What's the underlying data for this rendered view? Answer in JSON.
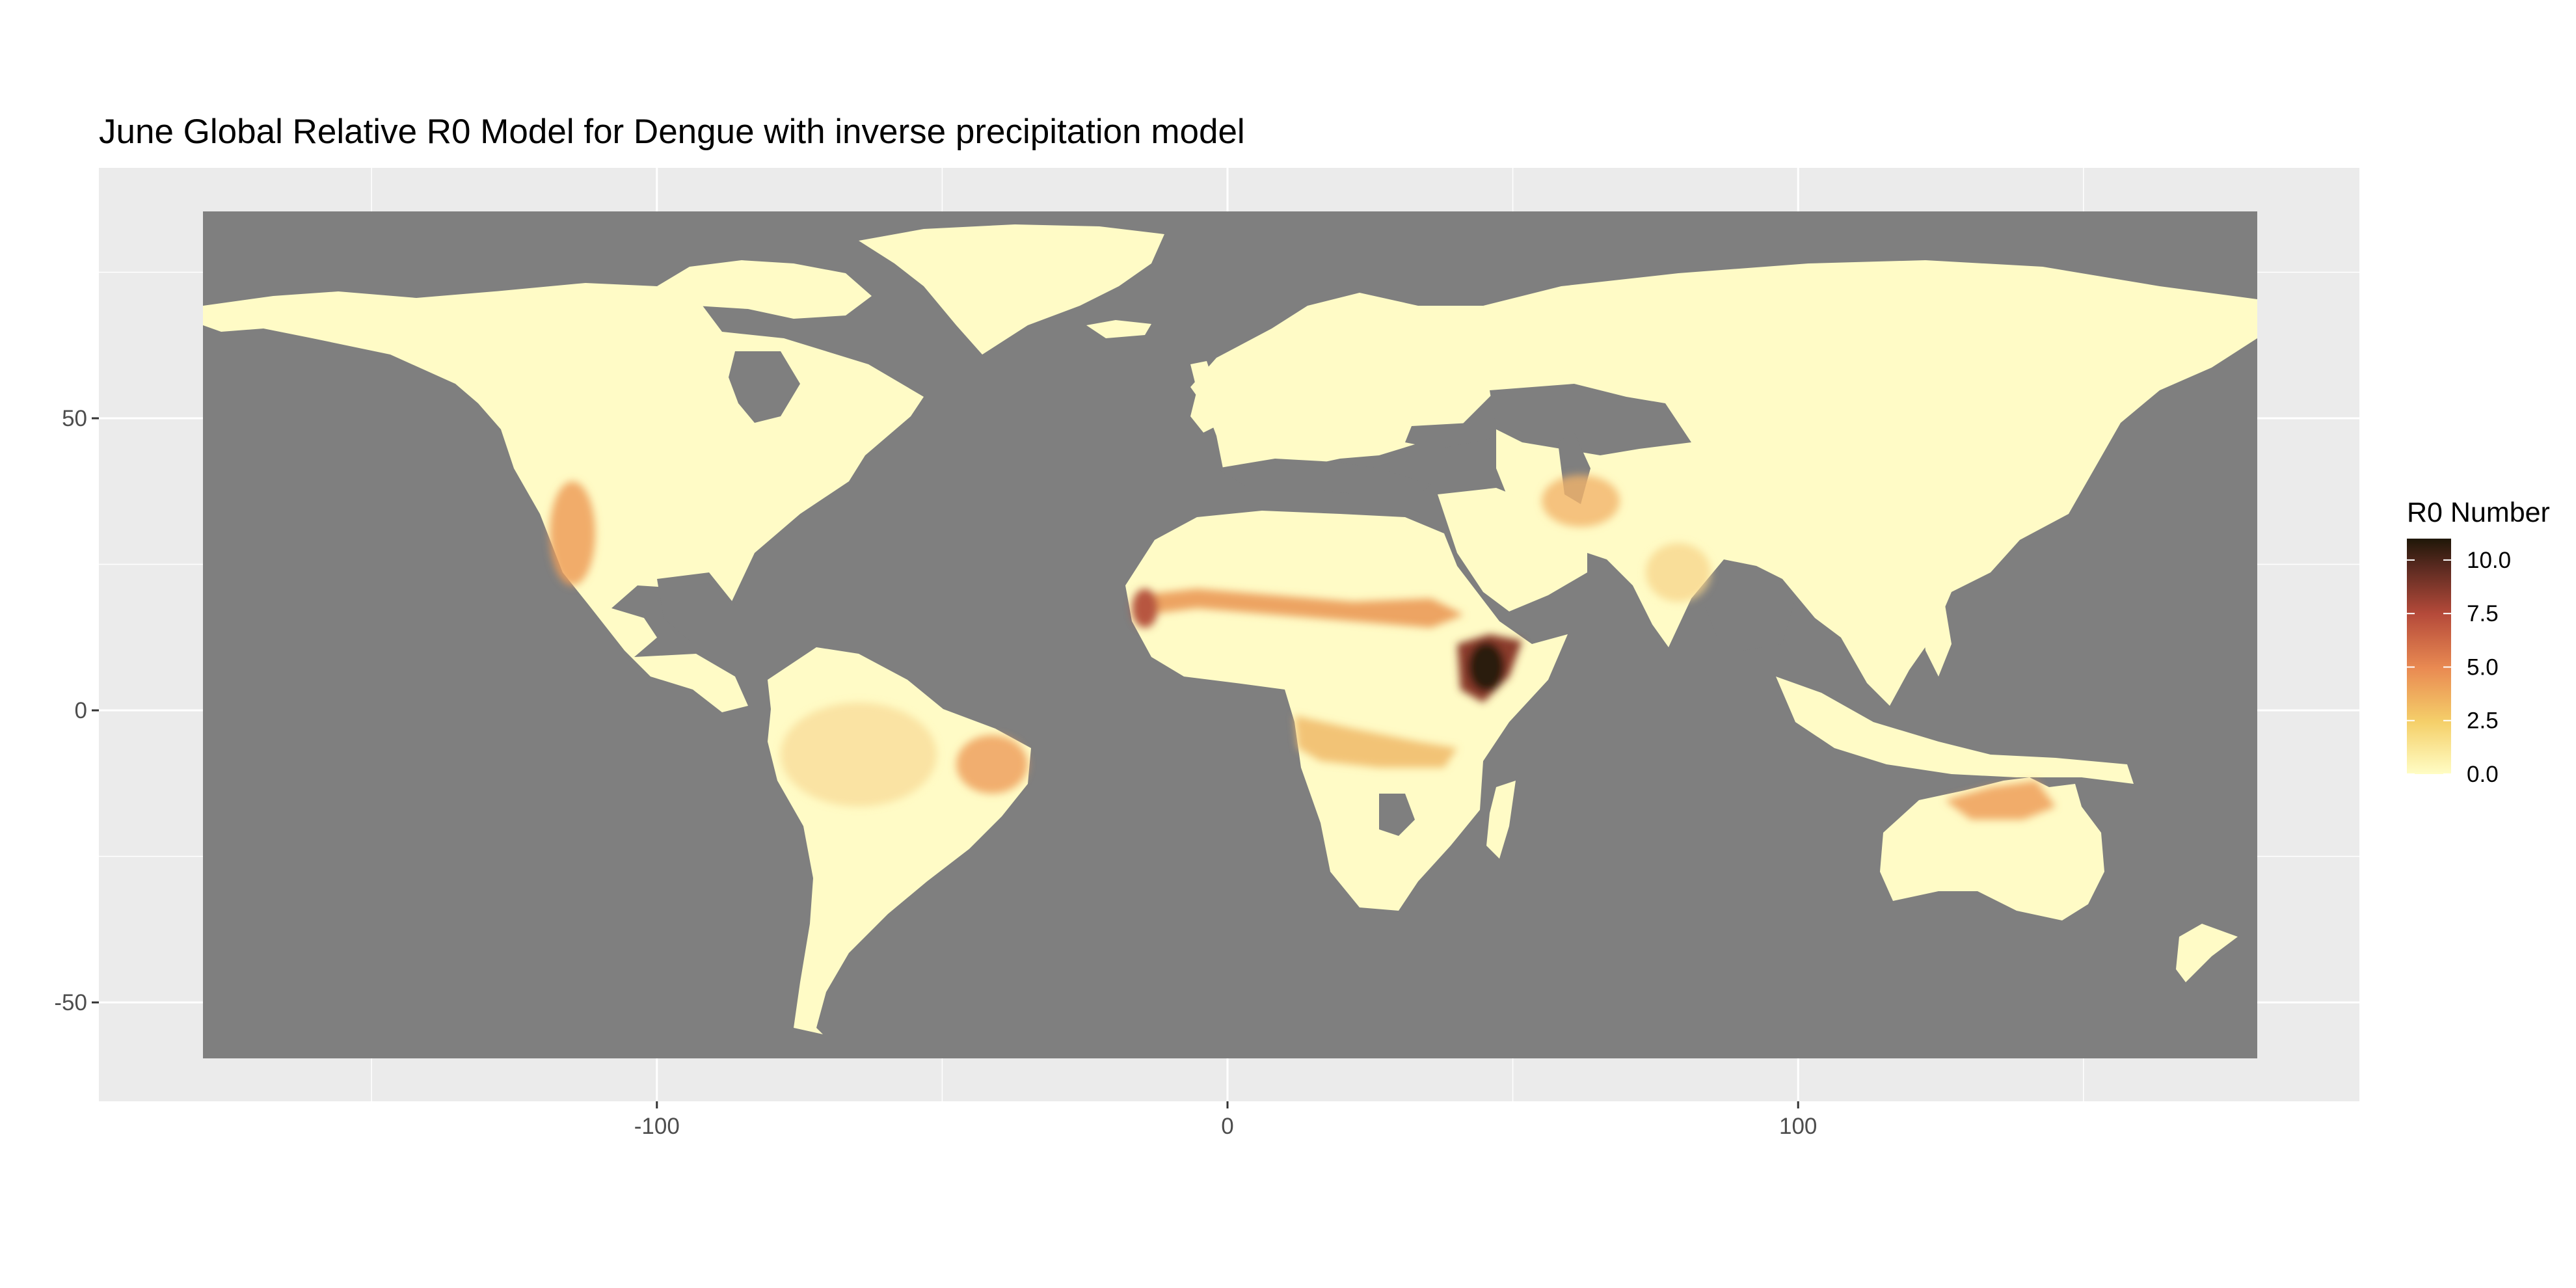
{
  "chart_data": {
    "type": "heatmap",
    "title": "June Global Relative R0 Model for Dengue with inverse precipitation model",
    "xlabel": "",
    "ylabel": "",
    "x_ticks": [
      -100,
      0,
      100
    ],
    "x_tick_labels": [
      "-100",
      "0",
      "100"
    ],
    "y_ticks": [
      50,
      0,
      -50
    ],
    "y_tick_labels": [
      "50",
      "0",
      "-50"
    ],
    "xlim": [
      -198,
      198
    ],
    "ylim": [
      -67,
      93
    ],
    "raster_extent": {
      "lon": [
        -180,
        180
      ],
      "lat": [
        -60,
        85
      ]
    },
    "grid": true,
    "legend": {
      "title": "R0 Number",
      "placement": "right",
      "min": 0,
      "max": 11,
      "breaks": [
        10.0,
        7.5,
        5.0,
        2.5,
        0.0
      ],
      "break_labels": [
        "10.0",
        "7.5",
        "5.0",
        "2.5",
        "0.0"
      ],
      "colors": [
        "#fffdc5",
        "#f5d06a",
        "#e98a52",
        "#b54a3a",
        "#5a2a20",
        "#1f1708"
      ]
    },
    "colors": {
      "panel_background": "#ebebeb",
      "no_data": "#7f7f7f",
      "grid": "#ffffff",
      "land_low": "#fffbc6"
    },
    "hotspots": [
      {
        "region": "Sahel",
        "lon": [
          -17,
          40
        ],
        "lat": [
          10,
          18
        ],
        "r0": 6
      },
      {
        "region": "Horn of Africa",
        "lon": [
          37,
          50
        ],
        "lat": [
          2,
          12
        ],
        "r0": 10
      },
      {
        "region": "Central Africa",
        "lon": [
          13,
          35
        ],
        "lat": [
          -8,
          0
        ],
        "r0": 4
      },
      {
        "region": "East Brazil",
        "lon": [
          -48,
          -38
        ],
        "lat": [
          -15,
          -5
        ],
        "r0": 4
      },
      {
        "region": "West Mexico",
        "lon": [
          -112,
          -100
        ],
        "lat": [
          18,
          32
        ],
        "r0": 4
      },
      {
        "region": "Northern Australia",
        "lon": [
          125,
          145
        ],
        "lat": [
          -20,
          -12
        ],
        "r0": 4
      },
      {
        "region": "Middle East",
        "lon": [
          40,
          70
        ],
        "lat": [
          25,
          40
        ],
        "r0": 4
      }
    ]
  }
}
